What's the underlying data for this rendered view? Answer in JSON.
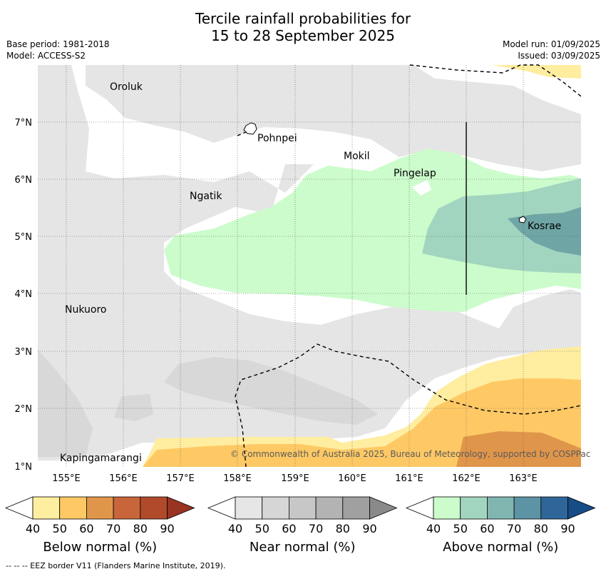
{
  "title_line1": "Tercile rainfall probabilities for",
  "title_line2": "15 to 28 September 2025",
  "meta": {
    "base_period": "Base period: 1981-2018",
    "model": "Model: ACCESS-S2",
    "model_run": "Model run: 01/09/2025",
    "issued": "Issued: 03/09/2025"
  },
  "map": {
    "lat_labels": [
      "7°N",
      "6°N",
      "5°N",
      "4°N",
      "3°N",
      "2°N",
      "1°N"
    ],
    "lon_labels": [
      "155°E",
      "156°E",
      "157°E",
      "158°E",
      "159°E",
      "160°E",
      "161°E",
      "162°E",
      "163°E"
    ],
    "places": [
      "Oroluk",
      "Pohnpei",
      "Mokil",
      "Pingelap",
      "Ngatik",
      "Kosrae",
      "Nukuoro",
      "Kapingamarangi"
    ],
    "copyright": "© Commonwealth of Australia 2025, Bureau of Meteorology, supported by COSPPac"
  },
  "colorbars": [
    {
      "title": "Below normal (%)",
      "ticks": [
        "40",
        "50",
        "60",
        "70",
        "80",
        "90"
      ],
      "colors": [
        "#ffeda0",
        "#fec965",
        "#e0964a",
        "#c9653a",
        "#b04a2a",
        "#993322"
      ]
    },
    {
      "title": "Near normal (%)",
      "ticks": [
        "40",
        "50",
        "60",
        "70",
        "80",
        "90"
      ],
      "colors": [
        "#e6e6e6",
        "#d6d6d6",
        "#c7c7c7",
        "#b3b3b3",
        "#a0a0a0",
        "#8a8a8a"
      ]
    },
    {
      "title": "Above normal (%)",
      "ticks": [
        "40",
        "50",
        "60",
        "70",
        "80",
        "90"
      ],
      "colors": [
        "#ccfccc",
        "#a2d5bf",
        "#80b5b0",
        "#5c93a5",
        "#2f6699",
        "#164d87"
      ]
    }
  ],
  "footer": "--  --  -- EEZ border V11 (Flanders Marine Institute, 2019)."
}
